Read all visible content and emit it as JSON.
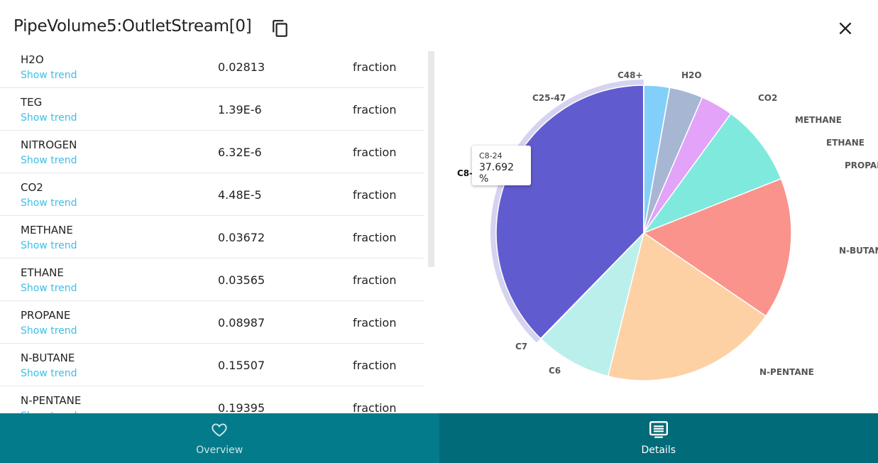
{
  "header": {
    "title": "PipeVolume5:OutletStream[0]"
  },
  "rows": [
    {
      "name": "H2O",
      "trend": "Show trend",
      "value": "0.02813",
      "unit": "fraction"
    },
    {
      "name": "TEG",
      "trend": "Show trend",
      "value": "1.39E-6",
      "unit": "fraction"
    },
    {
      "name": "NITROGEN",
      "trend": "Show trend",
      "value": "6.32E-6",
      "unit": "fraction"
    },
    {
      "name": "CO2",
      "trend": "Show trend",
      "value": "4.48E-5",
      "unit": "fraction"
    },
    {
      "name": "METHANE",
      "trend": "Show trend",
      "value": "0.03672",
      "unit": "fraction"
    },
    {
      "name": "ETHANE",
      "trend": "Show trend",
      "value": "0.03565",
      "unit": "fraction"
    },
    {
      "name": "PROPANE",
      "trend": "Show trend",
      "value": "0.08987",
      "unit": "fraction"
    },
    {
      "name": "N-BUTANE",
      "trend": "Show trend",
      "value": "0.15507",
      "unit": "fraction"
    },
    {
      "name": "N-PENTANE",
      "trend": "Show trend",
      "value": "0.19395",
      "unit": "fraction"
    }
  ],
  "chart_data": {
    "type": "pie",
    "slices": [
      {
        "label": "H2O",
        "value": 0.02813,
        "color": "#82cffa"
      },
      {
        "label": "CO2",
        "value": 4.48e-05,
        "color": "#a3b4d4"
      },
      {
        "label": "METHANE",
        "value": 0.03672,
        "color": "#a7b6d3"
      },
      {
        "label": "ETHANE",
        "value": 0.03565,
        "color": "#e2a3f8"
      },
      {
        "label": "PROPANE",
        "value": 0.08987,
        "color": "#7fe9dd"
      },
      {
        "label": "N-BUTANE",
        "value": 0.15507,
        "color": "#f9938c"
      },
      {
        "label": "N-PENTANE",
        "value": 0.19395,
        "color": "#fdd1a3"
      },
      {
        "label": "C6",
        "value": 0.0838,
        "color": "#bbefec"
      },
      {
        "label": "C7",
        "value": 0.0006,
        "color": "#5eaee8"
      },
      {
        "label": "C8-24",
        "value": 0.37692,
        "color": "#615bd0"
      },
      {
        "label": "C25-47",
        "value": 0.0002,
        "color": "#8f7ad8"
      },
      {
        "label": "C48+",
        "value": 2e-05,
        "color": "#6fc4f0"
      }
    ],
    "highlighted": "C8-24",
    "tooltip": {
      "label": "C8-24",
      "value": "37.692 %"
    },
    "label_cut": "C8-"
  },
  "tabs": [
    {
      "label": "Overview"
    },
    {
      "label": "Details"
    }
  ]
}
